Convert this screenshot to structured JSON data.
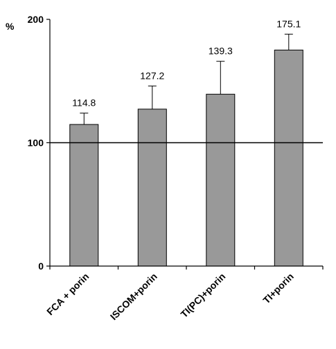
{
  "chart_data": {
    "type": "bar",
    "title": "",
    "xlabel": "",
    "ylabel": "%",
    "ylim": [
      0,
      200
    ],
    "yticks": [
      "0",
      "100",
      "200"
    ],
    "reference_line": 100,
    "grid": false,
    "categories": [
      "FCA + porin",
      "ISCOM+porin",
      "TI(PC)+porin",
      "TI+porin"
    ],
    "values": [
      114.8,
      127.2,
      139.3,
      175.1
    ],
    "value_labels": [
      "114.8",
      "127.2",
      "139.3",
      "175.1"
    ],
    "error_upper": [
      124,
      146,
      166,
      188
    ],
    "bar_color": "#999999"
  }
}
